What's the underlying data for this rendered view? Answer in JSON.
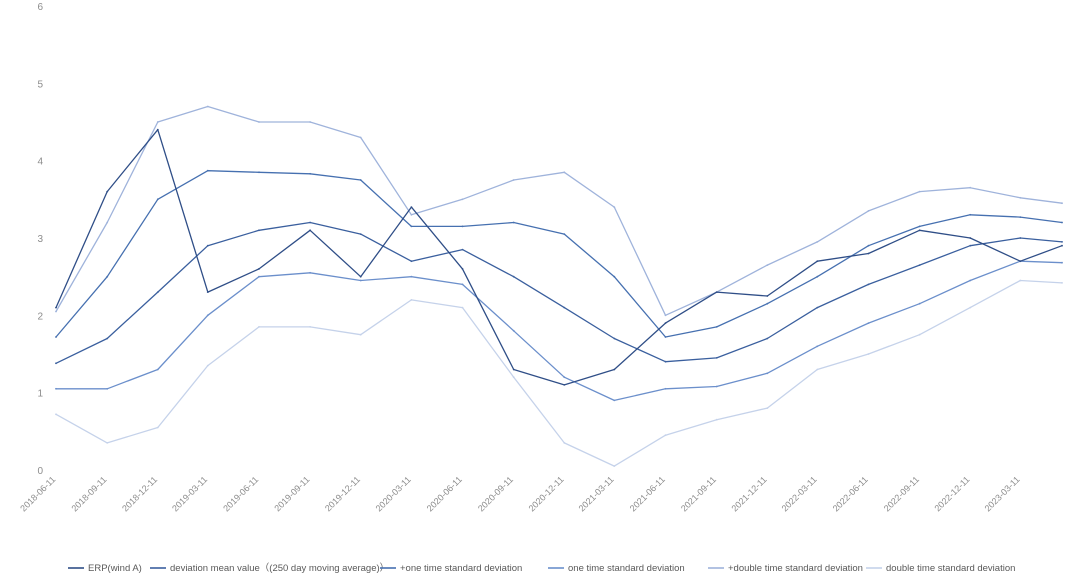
{
  "chart_data": {
    "type": "line",
    "title": "",
    "xlabel": "",
    "ylabel": "",
    "ylim": [
      0,
      6
    ],
    "yticks": [
      "0",
      "1",
      "2",
      "3",
      "4",
      "5",
      "6"
    ],
    "grid": false,
    "legend_position": "bottom",
    "x_tick_labels": [
      "2018-06-11",
      "2018-09-11",
      "2018-12-11",
      "2019-03-11",
      "2019-06-11",
      "2019-09-11",
      "2019-12-11",
      "2020-03-11",
      "2020-06-11",
      "2020-09-11",
      "2020-12-11",
      "2021-03-11",
      "2021-06-11",
      "2021-09-11",
      "2021-12-11",
      "2022-03-11",
      "2022-06-11",
      "2022-09-11",
      "2022-12-11",
      "2023-03-11"
    ],
    "x": [
      "2018-06-11",
      "2018-09-11",
      "2018-12-11",
      "2019-03-11",
      "2019-06-11",
      "2019-09-11",
      "2019-12-11",
      "2020-03-11",
      "2020-06-11",
      "2020-09-11",
      "2020-12-11",
      "2021-03-11",
      "2021-06-11",
      "2021-09-11",
      "2021-12-11",
      "2022-03-11",
      "2022-06-11",
      "2022-09-11",
      "2022-12-11",
      "2023-03-11",
      "2023-05-25"
    ],
    "series": [
      {
        "name": "ERP(wind A)",
        "color": "#2f4e87",
        "width": 1.3,
        "values": [
          2.1,
          3.6,
          4.4,
          2.3,
          2.6,
          3.1,
          2.5,
          3.4,
          2.6,
          1.3,
          1.1,
          1.3,
          1.9,
          2.3,
          2.25,
          2.7,
          2.8,
          3.1,
          3.0,
          2.7,
          2.9
        ]
      },
      {
        "name": "deviation mean value（(250 day moving average)）",
        "color": "#3a5f9e",
        "width": 1.3,
        "values": [
          1.38,
          1.7,
          2.3,
          2.9,
          3.1,
          3.2,
          3.05,
          2.7,
          2.85,
          2.5,
          2.1,
          1.7,
          1.4,
          1.45,
          1.7,
          2.1,
          2.4,
          2.65,
          2.9,
          3.0,
          2.95
        ]
      },
      {
        "name": "+one time standard deviation",
        "color": "#4670b0",
        "width": 1.3,
        "values": [
          1.72,
          2.5,
          3.5,
          3.87,
          3.85,
          3.83,
          3.75,
          3.15,
          3.15,
          3.2,
          3.05,
          2.5,
          1.72,
          1.85,
          2.15,
          2.5,
          2.9,
          3.15,
          3.3,
          3.27,
          3.2
        ]
      },
      {
        "name": "one time standard deviation",
        "color": "#6b8fcb",
        "width": 1.3,
        "values": [
          1.05,
          1.05,
          1.3,
          2.0,
          2.5,
          2.55,
          2.45,
          2.5,
          2.4,
          1.8,
          1.2,
          0.9,
          1.05,
          1.08,
          1.25,
          1.6,
          1.9,
          2.15,
          2.45,
          2.7,
          2.68
        ]
      },
      {
        "name": "+double time standard deviation",
        "color": "#9fb3db",
        "width": 1.3,
        "values": [
          2.05,
          3.2,
          4.5,
          4.7,
          4.5,
          4.5,
          4.3,
          3.3,
          3.5,
          3.75,
          3.85,
          3.4,
          2.0,
          2.3,
          2.65,
          2.95,
          3.35,
          3.6,
          3.65,
          3.52,
          3.45
        ]
      },
      {
        "name": "double time standard deviation",
        "color": "#c5d2ea",
        "width": 1.3,
        "values": [
          0.72,
          0.35,
          0.55,
          1.35,
          1.85,
          1.85,
          1.75,
          2.2,
          2.1,
          1.2,
          0.35,
          0.05,
          0.45,
          0.65,
          0.8,
          1.3,
          1.5,
          1.75,
          2.1,
          2.45,
          2.42
        ]
      }
    ]
  }
}
